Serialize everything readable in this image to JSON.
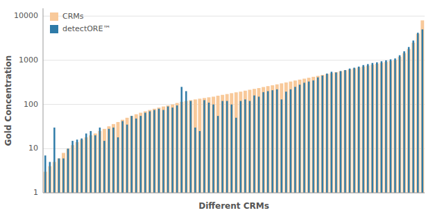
{
  "chart_data": {
    "type": "bar",
    "xlabel": "Different CRMs",
    "ylabel": "Gold Concentration",
    "categories": [
      null,
      null,
      null,
      null,
      null,
      null,
      null,
      null,
      null,
      null,
      null,
      null,
      null,
      null,
      null,
      null,
      null,
      null,
      null,
      null,
      null,
      null,
      null,
      null,
      null,
      null,
      null,
      null,
      null,
      null,
      null,
      null,
      null,
      null,
      null,
      null,
      null,
      null,
      null,
      null,
      null,
      null,
      null,
      null,
      null,
      null,
      null,
      null,
      null,
      null,
      null,
      null,
      null,
      null,
      null,
      null,
      null,
      null,
      null,
      null,
      null,
      null,
      null,
      null,
      null,
      null,
      null,
      null,
      null,
      null,
      null,
      null,
      null,
      null,
      null,
      null,
      null,
      null,
      null,
      null,
      null,
      null,
      null,
      null
    ],
    "series": [
      {
        "name": "CRMs",
        "color": "#f8c99a",
        "values": [
          3,
          4,
          5,
          6,
          8,
          10,
          12,
          14,
          16,
          18,
          20,
          22,
          25,
          28,
          32,
          36,
          40,
          45,
          50,
          55,
          60,
          65,
          70,
          75,
          80,
          85,
          90,
          95,
          100,
          108,
          115,
          120,
          125,
          130,
          135,
          140,
          145,
          150,
          158,
          165,
          172,
          180,
          188,
          195,
          205,
          215,
          225,
          235,
          248,
          260,
          272,
          285,
          300,
          315,
          330,
          348,
          365,
          383,
          402,
          422,
          443,
          465,
          488,
          512,
          538,
          565,
          593,
          623,
          654,
          687,
          721,
          757,
          795,
          835,
          876,
          920,
          966,
          1014,
          1200,
          1450,
          1800,
          2500,
          4000,
          8000
        ]
      },
      {
        "name": "detectORE™",
        "color": "#2e7ba8",
        "values": [
          7,
          5,
          30,
          6,
          6,
          10,
          15,
          16,
          17,
          22,
          25,
          20,
          30,
          15,
          28,
          30,
          18,
          42,
          35,
          55,
          48,
          55,
          65,
          70,
          75,
          80,
          75,
          90,
          85,
          95,
          250,
          200,
          120,
          30,
          25,
          125,
          110,
          100,
          55,
          120,
          120,
          100,
          50,
          120,
          130,
          120,
          160,
          150,
          190,
          200,
          210,
          220,
          130,
          195,
          220,
          250,
          280,
          310,
          330,
          350,
          410,
          450,
          500,
          550,
          530,
          570,
          600,
          650,
          680,
          720,
          780,
          820,
          870,
          900,
          950,
          1000,
          1050,
          1100,
          1300,
          1600,
          2000,
          2800,
          4200,
          5000
        ]
      }
    ],
    "log": "y",
    "ylim": [
      1,
      15000
    ],
    "yticks": [
      1,
      10,
      100,
      1000,
      10000
    ],
    "grid": true,
    "legend": "upper left",
    "tick_labels": "y"
  }
}
